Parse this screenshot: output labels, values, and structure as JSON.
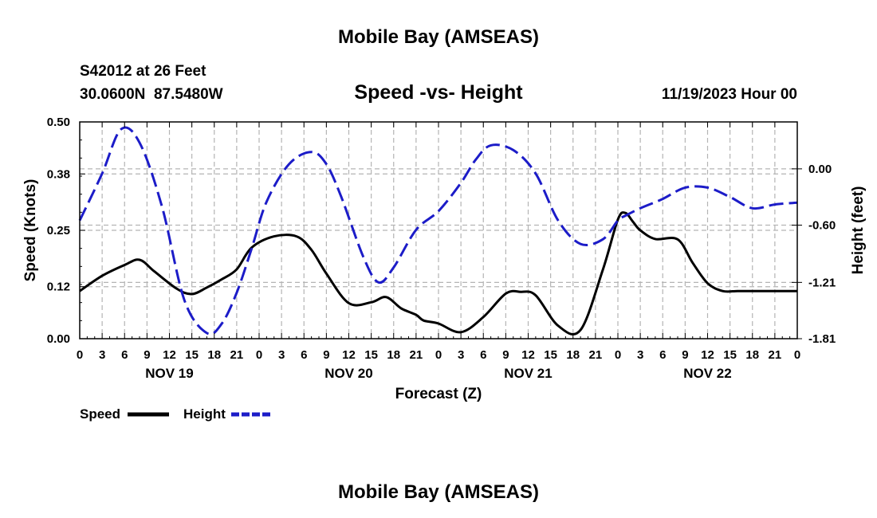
{
  "title_top": "Mobile Bay (AMSEAS)",
  "title_bottom": "Mobile Bay (AMSEAS)",
  "station_line": "S42012 at 26 Feet",
  "coords_line": "30.0600N  87.5480W",
  "date_line": "11/19/2023 Hour 00",
  "colors": {
    "speed": "#000000",
    "height": "#1c1cc8",
    "grid": "#b4b4b4"
  },
  "chart_data": {
    "type": "line",
    "title": "Speed -vs- Height",
    "xlabel": "Forecast (Z)",
    "ylabel": "Speed (Knots)",
    "ylabel_right": "Height (feet)",
    "x_unit": "hours",
    "xlim": [
      0,
      96
    ],
    "ylim": [
      0,
      0.5
    ],
    "ylim_right": [
      -1.81,
      0.5
    ],
    "y_ticks": [
      "0.00",
      "0.12",
      "0.25",
      "0.38",
      "0.50"
    ],
    "y_ticks_right": [
      "-1.81",
      "-1.21",
      "-0.60",
      "0.00"
    ],
    "x_tick_labels": [
      "0",
      "3",
      "6",
      "9",
      "12",
      "15",
      "18",
      "21",
      "0",
      "3",
      "6",
      "9",
      "12",
      "15",
      "18",
      "21",
      "0",
      "3",
      "6",
      "9",
      "12",
      "15",
      "18",
      "21",
      "0",
      "3",
      "6",
      "9",
      "12",
      "15",
      "18",
      "21",
      "0"
    ],
    "day_labels": [
      {
        "label": "NOV 19",
        "hour": 12
      },
      {
        "label": "NOV 20",
        "hour": 36
      },
      {
        "label": "NOV 21",
        "hour": 60
      },
      {
        "label": "NOV 22",
        "hour": 84
      }
    ],
    "legend": [
      "Speed",
      "Height"
    ],
    "series": [
      {
        "name": "Speed",
        "axis": "left",
        "style": "solid",
        "x": [
          0,
          3,
          6,
          8,
          10,
          13,
          15,
          17,
          19,
          21,
          23,
          26,
          29,
          31,
          33,
          36,
          39,
          41,
          43,
          45,
          46,
          48,
          51,
          54,
          57,
          59,
          61,
          64,
          67,
          70,
          72,
          73,
          74,
          75,
          77,
          80,
          82,
          84,
          86,
          88,
          90,
          92,
          94,
          96
        ],
        "y": [
          0.11,
          0.145,
          0.17,
          0.182,
          0.155,
          0.115,
          0.103,
          0.118,
          0.137,
          0.16,
          0.21,
          0.236,
          0.236,
          0.205,
          0.15,
          0.082,
          0.084,
          0.096,
          0.07,
          0.055,
          0.042,
          0.035,
          0.015,
          0.05,
          0.104,
          0.108,
          0.1,
          0.03,
          0.02,
          0.16,
          0.275,
          0.29,
          0.27,
          0.25,
          0.23,
          0.229,
          0.175,
          0.128,
          0.11,
          0.11,
          0.11,
          0.11,
          0.11,
          0.11
        ]
      },
      {
        "name": "Height",
        "axis": "right",
        "style": "dashed",
        "x": [
          0,
          3,
          5.5,
          8,
          11,
          14,
          17,
          19,
          21,
          23,
          25,
          28,
          31,
          33,
          35,
          38,
          40,
          42,
          45,
          48,
          51,
          53,
          55,
          58,
          61,
          64,
          67,
          70,
          72,
          73,
          75,
          78,
          81,
          84,
          87,
          90,
          93,
          96
        ],
        "y": [
          -0.55,
          -0.05,
          0.42,
          0.28,
          -0.4,
          -1.4,
          -1.75,
          -1.65,
          -1.32,
          -0.85,
          -0.35,
          0.05,
          0.18,
          0.05,
          -0.3,
          -0.95,
          -1.21,
          -1.05,
          -0.65,
          -0.45,
          -0.15,
          0.1,
          0.25,
          0.2,
          -0.05,
          -0.55,
          -0.8,
          -0.75,
          -0.55,
          -0.5,
          -0.42,
          -0.32,
          -0.2,
          -0.2,
          -0.3,
          -0.42,
          -0.38,
          -0.36
        ]
      }
    ]
  }
}
